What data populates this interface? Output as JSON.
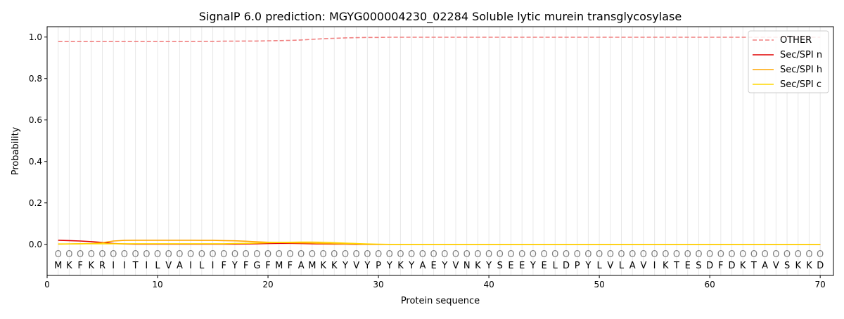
{
  "chart_data": {
    "type": "line",
    "title": "SignalP 6.0 prediction: MGYG000004230_02284 Soluble lytic murein transglycosylase",
    "xlabel": "Protein sequence",
    "ylabel": "Probability",
    "xlim": [
      0,
      71.2
    ],
    "ylim": [
      -0.15,
      1.05
    ],
    "xticks": [
      0,
      10,
      20,
      30,
      40,
      50,
      60,
      70
    ],
    "yticks": [
      0.0,
      0.2,
      0.4,
      0.6,
      0.8,
      1.0
    ],
    "grid": "vertical per residue",
    "legend_position": "top-right",
    "sequence": "MKFKRIITILVAILIFYFGFMFAMKKYVYPYKYAEYVNKYSEEYELDPYLVLAVIKTESDFDKTAVSKKD",
    "residue_label": "O",
    "series": [
      {
        "name": "OTHER",
        "color": "#f08080",
        "dash": true,
        "values": [
          0.978,
          0.978,
          0.978,
          0.978,
          0.978,
          0.978,
          0.978,
          0.978,
          0.978,
          0.978,
          0.978,
          0.978,
          0.978,
          0.979,
          0.979,
          0.98,
          0.98,
          0.981,
          0.981,
          0.982,
          0.983,
          0.984,
          0.986,
          0.989,
          0.992,
          0.994,
          0.996,
          0.997,
          0.998,
          0.998,
          0.999,
          0.999,
          0.999,
          0.999,
          0.999,
          0.999,
          0.999,
          0.999,
          0.999,
          0.999,
          0.999,
          0.999,
          0.999,
          0.999,
          0.999,
          0.999,
          0.999,
          0.999,
          0.999,
          0.999,
          0.999,
          0.999,
          0.999,
          0.999,
          0.999,
          0.999,
          0.999,
          0.999,
          0.999,
          0.999,
          0.999,
          0.999,
          0.999,
          0.999,
          0.999,
          0.999,
          0.999,
          0.999,
          0.999,
          0.999
        ]
      },
      {
        "name": "Sec/SPI n",
        "color": "#e00000",
        "dash": false,
        "values": [
          0.02,
          0.018,
          0.016,
          0.013,
          0.009,
          0.004,
          0.002,
          0.001,
          0.001,
          0.001,
          0.001,
          0.001,
          0.001,
          0.001,
          0.001,
          0.001,
          0.001,
          0.002,
          0.003,
          0.004,
          0.005,
          0.005,
          0.004,
          0.003,
          0.002,
          0.001,
          0.001,
          0,
          0,
          0,
          0,
          0,
          0,
          0,
          0,
          0,
          0,
          0,
          0,
          0,
          0,
          0,
          0,
          0,
          0,
          0,
          0,
          0,
          0,
          0,
          0,
          0,
          0,
          0,
          0,
          0,
          0,
          0,
          0,
          0,
          0,
          0,
          0,
          0,
          0,
          0,
          0,
          0,
          0,
          0
        ]
      },
      {
        "name": "Sec/SPI h",
        "color": "#ffa500",
        "dash": false,
        "values": [
          0.001,
          0.002,
          0.003,
          0.004,
          0.008,
          0.016,
          0.019,
          0.02,
          0.02,
          0.02,
          0.02,
          0.02,
          0.02,
          0.019,
          0.019,
          0.018,
          0.017,
          0.015,
          0.012,
          0.01,
          0.009,
          0.008,
          0.007,
          0.006,
          0.004,
          0.003,
          0.002,
          0.001,
          0,
          0,
          0,
          0,
          0,
          0,
          0,
          0,
          0,
          0,
          0,
          0,
          0,
          0,
          0,
          0,
          0,
          0,
          0,
          0,
          0,
          0,
          0,
          0,
          0,
          0,
          0,
          0,
          0,
          0,
          0,
          0,
          0,
          0,
          0,
          0,
          0,
          0,
          0,
          0,
          0,
          0
        ]
      },
      {
        "name": "Sec/SPI c",
        "color": "#ffd700",
        "dash": false,
        "values": [
          0.002,
          0.002,
          0.003,
          0.003,
          0.003,
          0.003,
          0.003,
          0.003,
          0.003,
          0.003,
          0.003,
          0.003,
          0.003,
          0.003,
          0.003,
          0.003,
          0.004,
          0.005,
          0.006,
          0.008,
          0.009,
          0.01,
          0.011,
          0.011,
          0.01,
          0.008,
          0.006,
          0.004,
          0.002,
          0.001,
          0,
          0,
          0,
          0,
          0,
          0,
          0,
          0,
          0,
          0,
          0,
          0,
          0,
          0,
          0,
          0,
          0,
          0,
          0,
          0,
          0,
          0,
          0,
          0,
          0,
          0,
          0,
          0,
          0,
          0,
          0,
          0,
          0,
          0,
          0,
          0,
          0,
          0,
          0,
          0
        ]
      }
    ]
  }
}
